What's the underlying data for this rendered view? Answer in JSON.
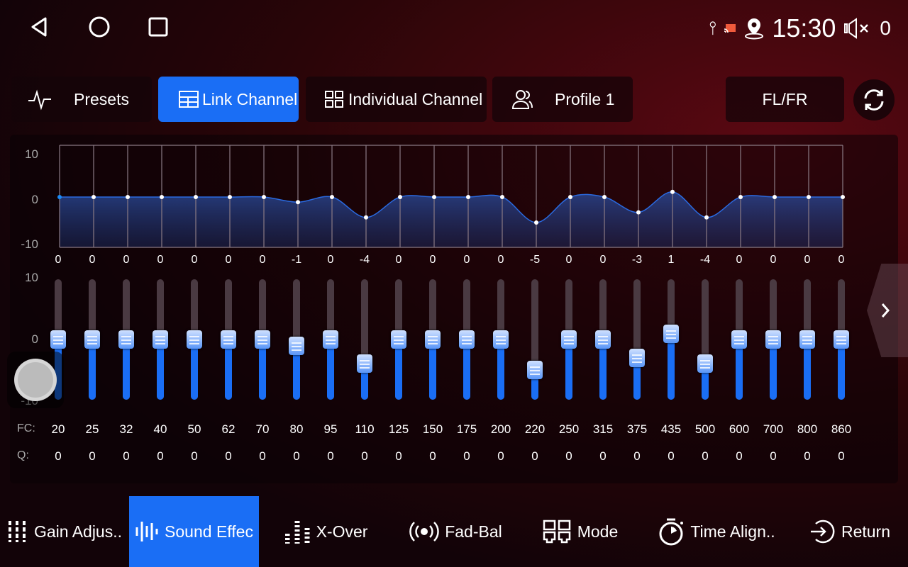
{
  "status": {
    "time": "15:30",
    "volume": "0",
    "icons": [
      "usb-icon",
      "cast-icon",
      "location-icon",
      "mute-icon"
    ]
  },
  "nav": [
    "back-icon",
    "home-icon",
    "recents-icon"
  ],
  "tabs": {
    "presets": "Presets",
    "link": "Link Channel",
    "individual": "Individual Channel",
    "profile": "Profile 1",
    "channel": "FL/FR"
  },
  "graph": {
    "y_ticks": [
      "10",
      "0",
      "-10"
    ]
  },
  "slider_axis": [
    "10",
    "0",
    "-10"
  ],
  "labels": {
    "fc": "FC:",
    "q": "Q:"
  },
  "bands": {
    "gains": [
      0,
      0,
      0,
      0,
      0,
      0,
      0,
      -1,
      0,
      -4,
      0,
      0,
      0,
      0,
      -5,
      0,
      0,
      -3,
      1,
      -4,
      0,
      0,
      0,
      0
    ],
    "fc": [
      "20",
      "25",
      "32",
      "40",
      "50",
      "62",
      "70",
      "80",
      "95",
      "110",
      "125",
      "150",
      "175",
      "200",
      "220",
      "250",
      "315",
      "375",
      "435",
      "500",
      "600",
      "700",
      "800",
      "860"
    ],
    "q": [
      "0",
      "0",
      "0",
      "0",
      "0",
      "0",
      "0",
      "0",
      "0",
      "0",
      "0",
      "0",
      "0",
      "0",
      "0",
      "0",
      "0",
      "0",
      "0",
      "0",
      "0",
      "0",
      "0",
      "0"
    ],
    "range": [
      -10,
      10
    ]
  },
  "bottom": {
    "gain": "Gain Adjus..",
    "sound": "Sound Effec",
    "xover": "X-Over",
    "fadbal": "Fad-Bal",
    "mode": "Mode",
    "time": "Time Align..",
    "ret": "Return"
  },
  "colors": {
    "accent": "#1a6ef5"
  }
}
